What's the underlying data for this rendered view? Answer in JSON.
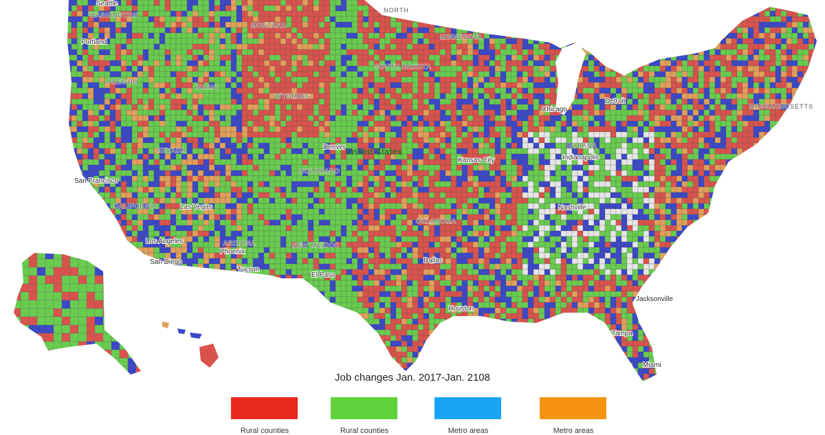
{
  "map": {
    "country_label": "United States",
    "state_labels": [
      "WASHINGTON",
      "MONTANA",
      "NORTH",
      "SOUTH DAKOTA",
      "OREGON",
      "IDAHO",
      "WYOMING",
      "NEVADA",
      "CALIFORNIA",
      "COLORADO",
      "ARIZONA",
      "NEW MEXICO",
      "MINNESOTA",
      "OKLAHOMA",
      "INDIANA",
      "MASSACHUSETTS"
    ],
    "city_labels": [
      "Seattle",
      "Portland",
      "Denver",
      "Chicago",
      "Detroit",
      "Indianapolis",
      "Kansas City",
      "San Francisco",
      "Las Vegas",
      "Los Angeles",
      "San Diego",
      "Phoenix",
      "Tucson",
      "El Paso",
      "Dallas",
      "Nashville",
      "Jacksonville",
      "Tampa",
      "Miami",
      "Houston"
    ]
  },
  "legend": {
    "title": "Job changes Jan. 2017-Jan. 2108",
    "items": [
      {
        "label": "Rural counties",
        "color": "#e8291c"
      },
      {
        "label": "Rural counties",
        "color": "#5fd13b"
      },
      {
        "label": "Metro areas",
        "color": "#1aa3f5"
      },
      {
        "label": "Metro areas",
        "color": "#f5920f"
      }
    ]
  },
  "map_colors": {
    "red": "#d9534c",
    "green": "#68cc4f",
    "blue": "#3b48c7",
    "orange": "#e0a05a",
    "lightgray": "#e6e6e6"
  }
}
